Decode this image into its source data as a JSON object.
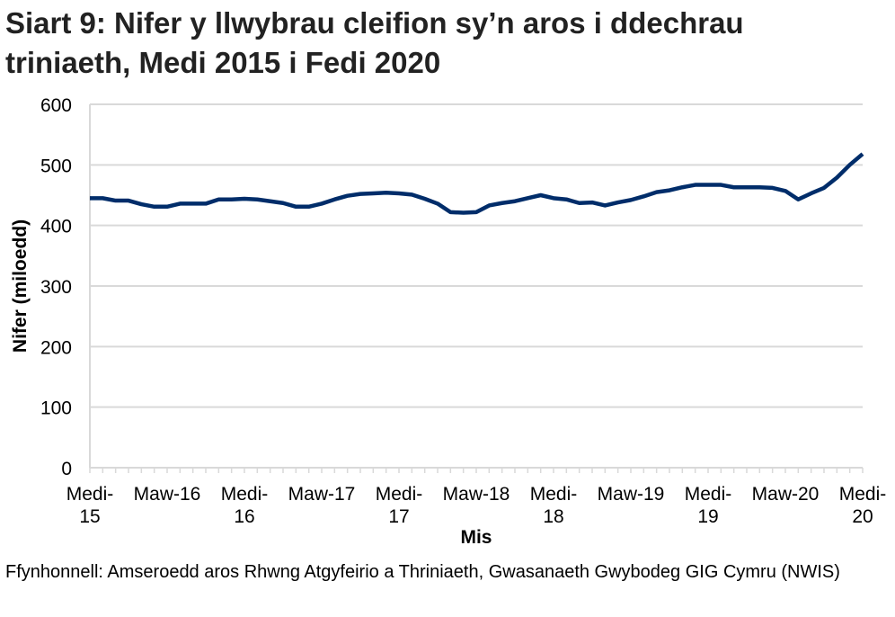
{
  "chart_data": {
    "type": "line",
    "title": "Siart 9: Nifer y llwybrau cleifion sy’n aros i ddechrau triniaeth, Medi 2015 i Fedi 2020",
    "xlabel": "Mis",
    "ylabel": "Nifer (miloedd)",
    "ylim": [
      0,
      600
    ],
    "yticks": [
      0,
      100,
      200,
      300,
      400,
      500,
      600
    ],
    "xtick_labels": [
      [
        "Medi-",
        "15"
      ],
      [
        "Maw-16"
      ],
      [
        "Medi-",
        "16"
      ],
      [
        "Maw-17"
      ],
      [
        "Medi-",
        "17"
      ],
      [
        "Maw-18"
      ],
      [
        "Medi-",
        "18"
      ],
      [
        "Maw-19"
      ],
      [
        "Medi-",
        "19"
      ],
      [
        "Maw-20"
      ],
      [
        "Medi-",
        "20"
      ]
    ],
    "grid": true,
    "line_color": "#002D6A",
    "x_start": "2015-09",
    "x_end": "2020-09",
    "values": [
      445,
      445,
      441,
      441,
      435,
      431,
      431,
      436,
      436,
      436,
      443,
      443,
      444,
      443,
      440,
      437,
      431,
      431,
      436,
      443,
      449,
      452,
      453,
      454,
      453,
      451,
      444,
      436,
      422,
      421,
      422,
      433,
      437,
      440,
      445,
      450,
      445,
      443,
      437,
      438,
      433,
      438,
      442,
      448,
      455,
      458,
      463,
      467,
      467,
      467,
      463,
      463,
      463,
      462,
      457,
      443,
      453,
      462,
      479,
      500,
      518
    ]
  },
  "source": "Ffynhonnell: Amseroedd aros Rhwng Atgyfeirio a Thriniaeth, Gwasanaeth Gwybodeg GIG Cymru (NWIS)"
}
